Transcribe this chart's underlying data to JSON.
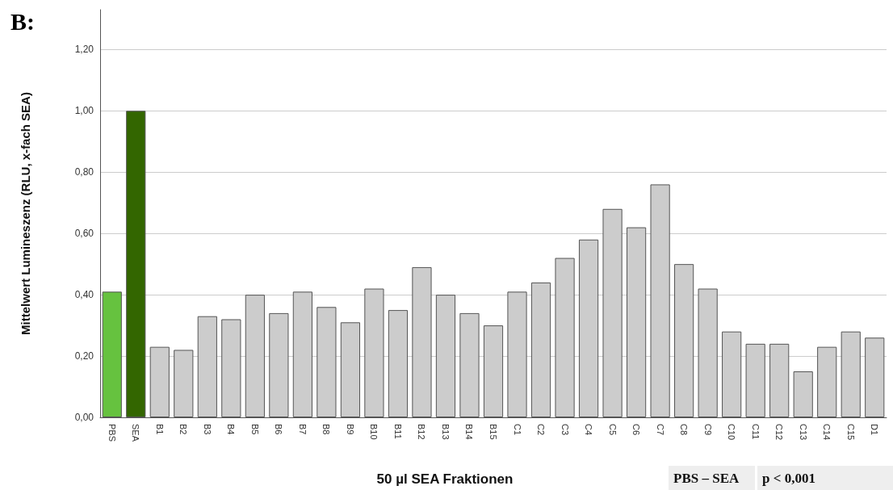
{
  "chart_data": {
    "type": "bar",
    "title": "B:",
    "xlabel": "50 µl SEA Fraktionen",
    "ylabel": "Mittelwert Lumineszenz (RLU, x-fach SEA)",
    "categories": [
      "PBS",
      "SEA",
      "B1",
      "B2",
      "B3",
      "B4",
      "B5",
      "B6",
      "B7",
      "B8",
      "B9",
      "B10",
      "B11",
      "B12",
      "B13",
      "B14",
      "B15",
      "C1",
      "C2",
      "C3",
      "C4",
      "C5",
      "C6",
      "C7",
      "C8",
      "C9",
      "C10",
      "C11",
      "C12",
      "C13",
      "C14",
      "C15",
      "D1"
    ],
    "values": [
      0.41,
      1.0,
      0.23,
      0.22,
      0.33,
      0.32,
      0.4,
      0.34,
      0.41,
      0.36,
      0.31,
      0.42,
      0.35,
      0.49,
      0.4,
      0.34,
      0.3,
      0.41,
      0.44,
      0.52,
      0.58,
      0.68,
      0.62,
      0.76,
      0.5,
      0.42,
      0.28,
      0.24,
      0.24,
      0.15,
      0.23,
      0.28,
      0.26
    ],
    "colors": [
      "#66c23f",
      "#336600",
      "#cccccc",
      "#cccccc",
      "#cccccc",
      "#cccccc",
      "#cccccc",
      "#cccccc",
      "#cccccc",
      "#cccccc",
      "#cccccc",
      "#cccccc",
      "#cccccc",
      "#cccccc",
      "#cccccc",
      "#cccccc",
      "#cccccc",
      "#cccccc",
      "#cccccc",
      "#cccccc",
      "#cccccc",
      "#cccccc",
      "#cccccc",
      "#cccccc",
      "#cccccc",
      "#cccccc",
      "#cccccc",
      "#cccccc",
      "#cccccc",
      "#cccccc",
      "#cccccc",
      "#cccccc",
      "#cccccc"
    ],
    "ylim": [
      0,
      1.33
    ],
    "yticks": [
      {
        "value": 0,
        "label": "0,00"
      },
      {
        "value": 0.2,
        "label": "0,20"
      },
      {
        "value": 0.4,
        "label": "0,40"
      },
      {
        "value": 0.6,
        "label": "0,60"
      },
      {
        "value": 0.8,
        "label": "0,80"
      },
      {
        "value": 1.0,
        "label": "1,00"
      },
      {
        "value": 1.2,
        "label": "1,20"
      }
    ],
    "grid": "y",
    "annotations": [
      "PBS – SEA",
      "p < 0,001"
    ]
  }
}
